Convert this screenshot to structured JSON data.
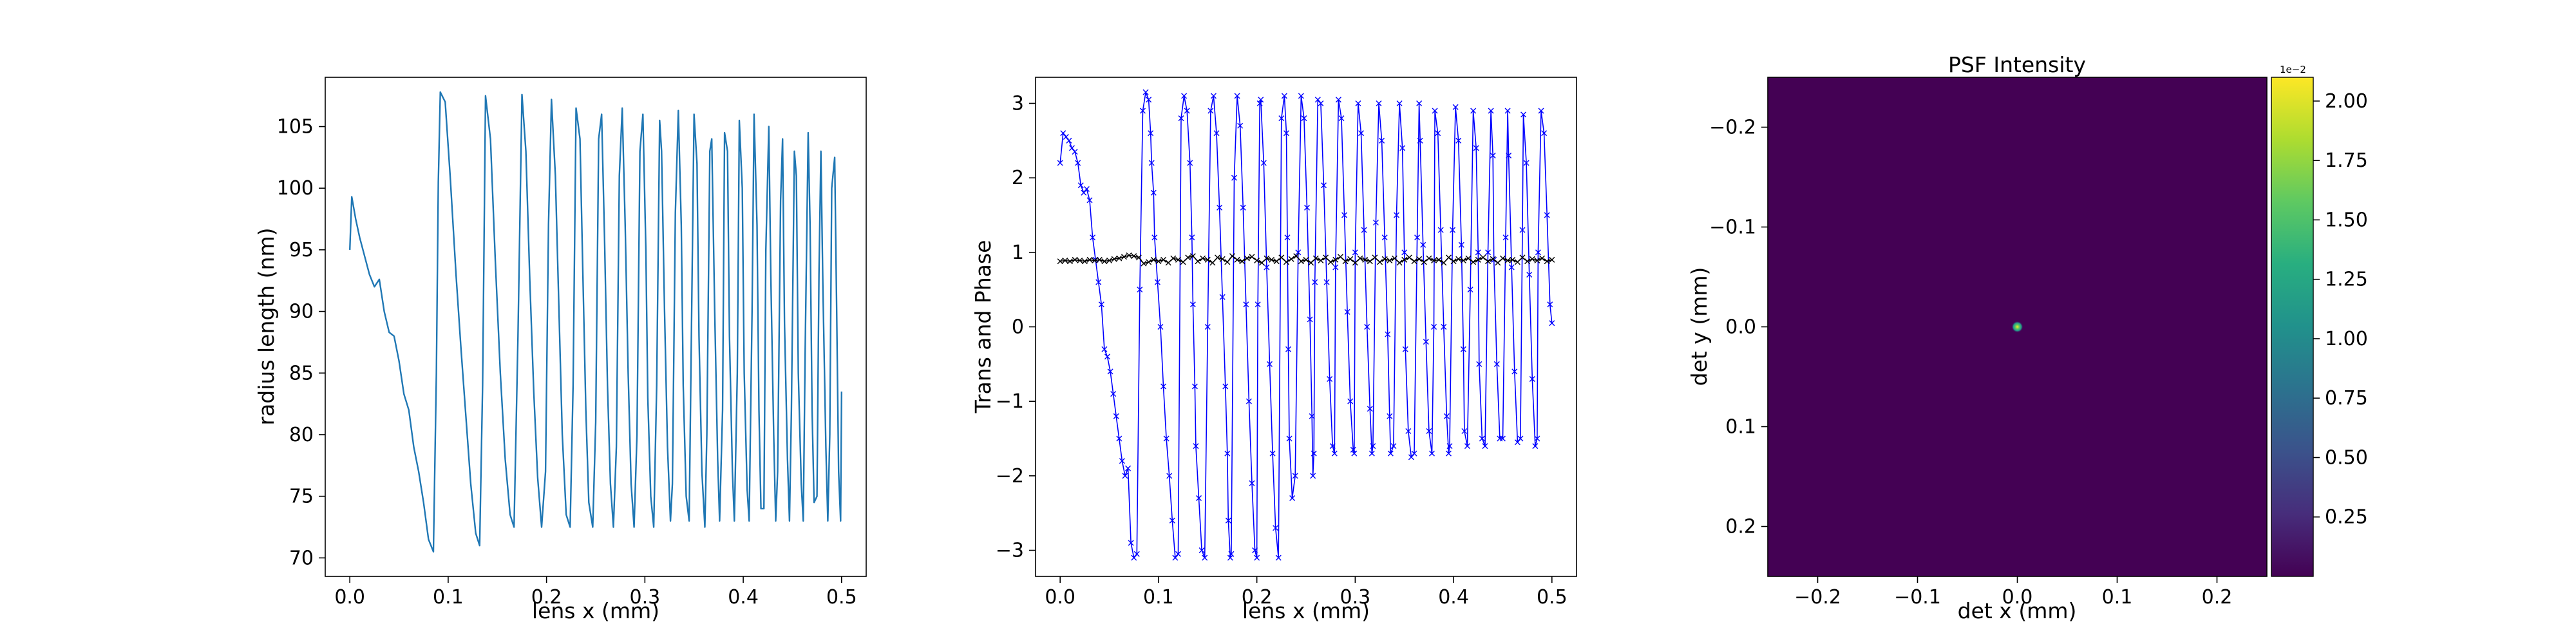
{
  "chart_data": [
    {
      "type": "line",
      "xlabel": "lens x (mm)",
      "ylabel": "radius length (nm)",
      "xlim": [
        -0.025,
        0.525
      ],
      "ylim": [
        68.5,
        109.0
      ],
      "xticks": [
        0.0,
        0.1,
        0.2,
        0.3,
        0.4,
        0.5
      ],
      "xtick_labels": [
        "0.0",
        "0.1",
        "0.2",
        "0.3",
        "0.4",
        "0.5"
      ],
      "yticks": [
        70,
        75,
        80,
        85,
        90,
        95,
        100,
        105
      ],
      "ytick_labels": [
        "70",
        "75",
        "80",
        "85",
        "90",
        "95",
        "100",
        "105"
      ],
      "series": [
        {
          "color": "#1f77b4",
          "x": [
            0.0,
            0.002,
            0.006,
            0.01,
            0.015,
            0.02,
            0.025,
            0.03,
            0.035,
            0.04,
            0.045,
            0.05,
            0.055,
            0.06,
            0.065,
            0.07,
            0.075,
            0.08,
            0.085,
            0.088,
            0.09,
            0.092,
            0.097,
            0.102,
            0.108,
            0.113,
            0.118,
            0.123,
            0.128,
            0.132,
            0.135,
            0.138,
            0.143,
            0.148,
            0.153,
            0.158,
            0.163,
            0.167,
            0.171,
            0.175,
            0.179,
            0.183,
            0.187,
            0.191,
            0.195,
            0.199,
            0.202,
            0.205,
            0.209,
            0.213,
            0.216,
            0.22,
            0.224,
            0.227,
            0.23,
            0.234,
            0.237,
            0.24,
            0.243,
            0.247,
            0.25,
            0.253,
            0.256,
            0.259,
            0.262,
            0.265,
            0.268,
            0.271,
            0.274,
            0.277,
            0.28,
            0.283,
            0.286,
            0.289,
            0.292,
            0.295,
            0.298,
            0.301,
            0.303,
            0.306,
            0.309,
            0.312,
            0.315,
            0.317,
            0.32,
            0.323,
            0.326,
            0.328,
            0.331,
            0.334,
            0.337,
            0.339,
            0.342,
            0.345,
            0.347,
            0.35,
            0.353,
            0.355,
            0.358,
            0.361,
            0.363,
            0.366,
            0.368,
            0.371,
            0.374,
            0.376,
            0.379,
            0.381,
            0.384,
            0.386,
            0.389,
            0.391,
            0.394,
            0.396,
            0.399,
            0.401,
            0.404,
            0.406,
            0.409,
            0.411,
            0.414,
            0.416,
            0.418,
            0.421,
            0.423,
            0.426,
            0.428,
            0.431,
            0.433,
            0.435,
            0.438,
            0.44,
            0.442,
            0.445,
            0.447,
            0.449,
            0.452,
            0.454,
            0.456,
            0.459,
            0.461,
            0.463,
            0.466,
            0.468,
            0.47,
            0.472,
            0.475,
            0.477,
            0.479,
            0.481,
            0.484,
            0.486,
            0.488,
            0.49,
            0.493,
            0.495,
            0.497,
            0.499,
            0.5
          ],
          "y": [
            95.0,
            99.3,
            97.5,
            96.0,
            94.5,
            93.0,
            92.0,
            92.6,
            90.0,
            88.3,
            88.0,
            86.0,
            83.3,
            82.0,
            79.0,
            77.0,
            74.5,
            71.5,
            70.5,
            85.0,
            100.5,
            107.8,
            107.0,
            101.0,
            93.0,
            87.0,
            81.5,
            76.0,
            72.0,
            71.0,
            84.0,
            107.5,
            104.0,
            94.0,
            85.0,
            78.0,
            73.5,
            72.5,
            88.0,
            107.6,
            103.0,
            92.5,
            83.5,
            76.5,
            72.5,
            77.0,
            97.0,
            107.2,
            101.0,
            89.0,
            80.0,
            73.5,
            72.5,
            84.0,
            106.5,
            104.0,
            93.0,
            82.0,
            74.5,
            72.5,
            81.0,
            104.0,
            106.0,
            96.0,
            84.0,
            76.0,
            72.5,
            79.0,
            101.0,
            106.5,
            97.0,
            85.0,
            76.0,
            72.5,
            80.0,
            103.0,
            106.0,
            95.0,
            83.0,
            75.0,
            72.5,
            84.0,
            105.5,
            103.0,
            90.0,
            79.0,
            73.0,
            76.0,
            98.0,
            106.3,
            97.0,
            84.0,
            75.0,
            73.0,
            86.0,
            106.0,
            102.0,
            88.0,
            77.0,
            72.5,
            80.0,
            103.0,
            104.0,
            90.0,
            78.0,
            73.0,
            82.0,
            104.5,
            103.0,
            88.0,
            77.0,
            73.0,
            85.0,
            105.5,
            100.0,
            85.0,
            75.5,
            73.0,
            90.0,
            106.0,
            97.0,
            82.0,
            74.0,
            74.0,
            95.0,
            105.0,
            93.0,
            80.0,
            73.0,
            77.0,
            99.0,
            104.0,
            89.0,
            78.0,
            73.0,
            82.0,
            103.0,
            101.0,
            85.0,
            76.0,
            73.0,
            87.0,
            104.5,
            97.0,
            82.0,
            74.5,
            75.0,
            93.0,
            103.0,
            92.0,
            79.0,
            73.0,
            80.0,
            100.0,
            102.5,
            90.0,
            77.0,
            73.0,
            83.5
          ]
        }
      ]
    },
    {
      "type": "line",
      "xlabel": "lens x (mm)",
      "ylabel": "Trans and Phase",
      "xlim": [
        -0.025,
        0.525
      ],
      "ylim": [
        -3.35,
        3.35
      ],
      "xticks": [
        0.0,
        0.1,
        0.2,
        0.3,
        0.4,
        0.5
      ],
      "xtick_labels": [
        "0.0",
        "0.1",
        "0.2",
        "0.3",
        "0.4",
        "0.5"
      ],
      "yticks": [
        -3,
        -2,
        -1,
        0,
        1,
        2,
        3
      ],
      "ytick_labels": [
        "−3",
        "−2",
        "−1",
        "0",
        "1",
        "2",
        "3"
      ],
      "series": [
        {
          "color": "#0000ff",
          "marker": "x",
          "x": [
            0.0,
            0.003,
            0.006,
            0.009,
            0.012,
            0.015,
            0.018,
            0.021,
            0.024,
            0.027,
            0.03,
            0.033,
            0.036,
            0.039,
            0.042,
            0.045,
            0.048,
            0.051,
            0.054,
            0.057,
            0.06,
            0.063,
            0.066,
            0.069,
            0.072,
            0.075,
            0.078,
            0.081,
            0.084,
            0.087,
            0.09,
            0.092,
            0.093,
            0.095,
            0.096,
            0.099,
            0.102,
            0.105,
            0.108,
            0.111,
            0.114,
            0.117,
            0.12,
            0.123,
            0.126,
            0.129,
            0.132,
            0.134,
            0.135,
            0.137,
            0.138,
            0.141,
            0.144,
            0.147,
            0.15,
            0.153,
            0.156,
            0.159,
            0.162,
            0.165,
            0.168,
            0.17,
            0.171,
            0.173,
            0.174,
            0.177,
            0.18,
            0.183,
            0.186,
            0.189,
            0.192,
            0.195,
            0.198,
            0.2,
            0.201,
            0.203,
            0.204,
            0.207,
            0.21,
            0.213,
            0.216,
            0.219,
            0.222,
            0.225,
            0.228,
            0.23,
            0.231,
            0.232,
            0.233,
            0.236,
            0.239,
            0.242,
            0.245,
            0.248,
            0.251,
            0.254,
            0.256,
            0.257,
            0.258,
            0.259,
            0.262,
            0.265,
            0.268,
            0.271,
            0.274,
            0.277,
            0.279,
            0.28,
            0.283,
            0.286,
            0.289,
            0.292,
            0.295,
            0.298,
            0.299,
            0.3,
            0.303,
            0.306,
            0.309,
            0.312,
            0.315,
            0.317,
            0.318,
            0.321,
            0.324,
            0.327,
            0.33,
            0.333,
            0.335,
            0.336,
            0.339,
            0.342,
            0.345,
            0.348,
            0.35,
            0.351,
            0.354,
            0.357,
            0.36,
            0.363,
            0.365,
            0.366,
            0.369,
            0.372,
            0.375,
            0.378,
            0.38,
            0.381,
            0.384,
            0.387,
            0.39,
            0.393,
            0.395,
            0.396,
            0.399,
            0.402,
            0.405,
            0.408,
            0.41,
            0.411,
            0.414,
            0.417,
            0.42,
            0.423,
            0.425,
            0.426,
            0.429,
            0.432,
            0.435,
            0.438,
            0.44,
            0.441,
            0.444,
            0.447,
            0.45,
            0.453,
            0.455,
            0.456,
            0.459,
            0.462,
            0.465,
            0.468,
            0.47,
            0.471,
            0.474,
            0.477,
            0.48,
            0.483,
            0.485,
            0.486,
            0.489,
            0.492,
            0.495,
            0.498,
            0.5
          ],
          "y": [
            2.2,
            2.6,
            2.55,
            2.5,
            2.4,
            2.35,
            2.2,
            1.9,
            1.8,
            1.85,
            1.7,
            1.2,
            0.9,
            0.6,
            0.3,
            -0.3,
            -0.4,
            -0.6,
            -0.9,
            -1.2,
            -1.5,
            -1.8,
            -2.0,
            -1.9,
            -2.9,
            -3.1,
            -3.05,
            0.5,
            2.9,
            3.15,
            3.05,
            2.6,
            2.2,
            1.8,
            1.2,
            0.6,
            0.0,
            -0.8,
            -1.5,
            -2.0,
            -2.6,
            -3.1,
            -3.05,
            2.8,
            3.1,
            2.9,
            2.2,
            1.2,
            0.3,
            -0.8,
            -1.6,
            -2.3,
            -3.0,
            -3.1,
            0.0,
            2.9,
            3.1,
            2.6,
            1.6,
            0.4,
            -0.8,
            -1.7,
            -2.6,
            -3.1,
            -3.05,
            2.0,
            3.1,
            2.7,
            1.6,
            0.3,
            -1.0,
            -2.1,
            -3.0,
            -3.1,
            0.3,
            3.0,
            3.05,
            2.2,
            0.8,
            -0.5,
            -1.7,
            -2.7,
            -3.1,
            2.8,
            3.1,
            2.6,
            1.2,
            -0.3,
            -1.5,
            -2.3,
            -2.0,
            1.0,
            3.1,
            2.8,
            1.6,
            0.1,
            -1.2,
            -2.0,
            -1.7,
            0.6,
            3.05,
            3.0,
            1.9,
            0.6,
            -0.7,
            -1.6,
            -1.7,
            0.8,
            3.05,
            2.8,
            1.5,
            0.2,
            -1.0,
            -1.65,
            -1.7,
            1.0,
            3.0,
            2.6,
            1.3,
            0.0,
            -1.1,
            -1.7,
            -1.6,
            1.4,
            3.0,
            2.5,
            1.2,
            -0.1,
            -1.2,
            -1.7,
            -1.6,
            1.5,
            3.0,
            2.4,
            1.0,
            -0.3,
            -1.4,
            -1.75,
            -1.7,
            1.2,
            3.0,
            2.5,
            1.1,
            -0.2,
            -1.4,
            -1.7,
            0.0,
            2.9,
            2.6,
            1.3,
            0.0,
            -1.2,
            -1.7,
            -1.6,
            1.3,
            2.95,
            2.5,
            1.1,
            -0.3,
            -1.4,
            -1.6,
            0.5,
            2.9,
            2.4,
            1.0,
            -0.5,
            -1.5,
            -1.6,
            1.0,
            2.9,
            2.3,
            0.9,
            -0.5,
            -1.5,
            -1.5,
            1.2,
            2.9,
            2.3,
            0.8,
            -0.6,
            -1.55,
            -1.5,
            1.3,
            2.85,
            2.2,
            0.7,
            -0.7,
            -1.6,
            -1.5,
            1.0,
            2.9,
            2.6,
            1.5,
            0.3,
            0.05
          ]
        },
        {
          "color": "#000000",
          "marker": "x",
          "x": [
            0.0,
            0.005,
            0.01,
            0.015,
            0.02,
            0.025,
            0.03,
            0.035,
            0.04,
            0.045,
            0.05,
            0.055,
            0.06,
            0.065,
            0.07,
            0.075,
            0.08,
            0.085,
            0.09,
            0.095,
            0.1,
            0.105,
            0.11,
            0.115,
            0.12,
            0.125,
            0.13,
            0.135,
            0.14,
            0.145,
            0.15,
            0.155,
            0.16,
            0.165,
            0.17,
            0.175,
            0.18,
            0.185,
            0.19,
            0.195,
            0.2,
            0.205,
            0.21,
            0.215,
            0.22,
            0.225,
            0.23,
            0.235,
            0.24,
            0.245,
            0.25,
            0.255,
            0.26,
            0.265,
            0.27,
            0.275,
            0.28,
            0.285,
            0.29,
            0.295,
            0.3,
            0.305,
            0.31,
            0.315,
            0.32,
            0.325,
            0.33,
            0.335,
            0.34,
            0.345,
            0.35,
            0.355,
            0.36,
            0.365,
            0.37,
            0.375,
            0.38,
            0.385,
            0.39,
            0.395,
            0.4,
            0.405,
            0.41,
            0.415,
            0.42,
            0.425,
            0.43,
            0.435,
            0.44,
            0.445,
            0.45,
            0.455,
            0.46,
            0.465,
            0.47,
            0.475,
            0.48,
            0.485,
            0.49,
            0.495,
            0.5
          ],
          "y": [
            0.88,
            0.89,
            0.88,
            0.9,
            0.89,
            0.88,
            0.9,
            0.89,
            0.9,
            0.88,
            0.89,
            0.91,
            0.92,
            0.94,
            0.96,
            0.95,
            0.93,
            0.85,
            0.87,
            0.9,
            0.88,
            0.9,
            0.86,
            0.92,
            0.9,
            0.87,
            0.93,
            0.95,
            0.88,
            0.92,
            0.9,
            0.86,
            0.93,
            0.91,
            0.87,
            0.95,
            0.9,
            0.88,
            0.92,
            0.94,
            0.89,
            0.86,
            0.92,
            0.9,
            0.88,
            0.93,
            0.87,
            0.91,
            0.95,
            0.88,
            0.9,
            0.86,
            0.92,
            0.89,
            0.93,
            0.87,
            0.9,
            0.94,
            0.88,
            0.91,
            0.86,
            0.92,
            0.9,
            0.88,
            0.93,
            0.87,
            0.91,
            0.89,
            0.92,
            0.86,
            0.9,
            0.93,
            0.88,
            0.91,
            0.87,
            0.92,
            0.89,
            0.9,
            0.86,
            0.93,
            0.88,
            0.91,
            0.89,
            0.92,
            0.87,
            0.9,
            0.93,
            0.88,
            0.91,
            0.86,
            0.92,
            0.89,
            0.9,
            0.87,
            0.93,
            0.88,
            0.91,
            0.89,
            0.92,
            0.88,
            0.9
          ]
        }
      ]
    },
    {
      "type": "heatmap",
      "title": "PSF Intensity",
      "xlabel": "det x (mm)",
      "ylabel": "det y (mm)",
      "xlim": [
        -0.25,
        0.25
      ],
      "ylim": [
        0.25,
        -0.25
      ],
      "xticks": [
        -0.2,
        -0.1,
        0.0,
        0.1,
        0.2
      ],
      "xtick_labels": [
        "−0.2",
        "−0.1",
        "0.0",
        "0.1",
        "0.2"
      ],
      "yticks": [
        -0.2,
        -0.1,
        0.0,
        0.1,
        0.2
      ],
      "ytick_labels": [
        "−0.2",
        "−0.1",
        "0.0",
        "0.1",
        "0.2"
      ],
      "background_color": "#440154",
      "peak": {
        "x": 0.0,
        "y": 0.0,
        "value": 0.0205
      },
      "colorbar": {
        "min": 0.0,
        "max": 0.021,
        "ticks": [
          0.25,
          0.5,
          0.75,
          1.0,
          1.25,
          1.5,
          1.75,
          2.0
        ],
        "tick_labels": [
          "0.25",
          "0.50",
          "0.75",
          "1.00",
          "1.25",
          "1.50",
          "1.75",
          "2.00"
        ],
        "offset_label": "1e−2",
        "colormap": [
          "#440154",
          "#472d7b",
          "#3b528b",
          "#2c728e",
          "#21918c",
          "#28ae80",
          "#5ec962",
          "#addc30",
          "#fde725"
        ]
      }
    }
  ]
}
